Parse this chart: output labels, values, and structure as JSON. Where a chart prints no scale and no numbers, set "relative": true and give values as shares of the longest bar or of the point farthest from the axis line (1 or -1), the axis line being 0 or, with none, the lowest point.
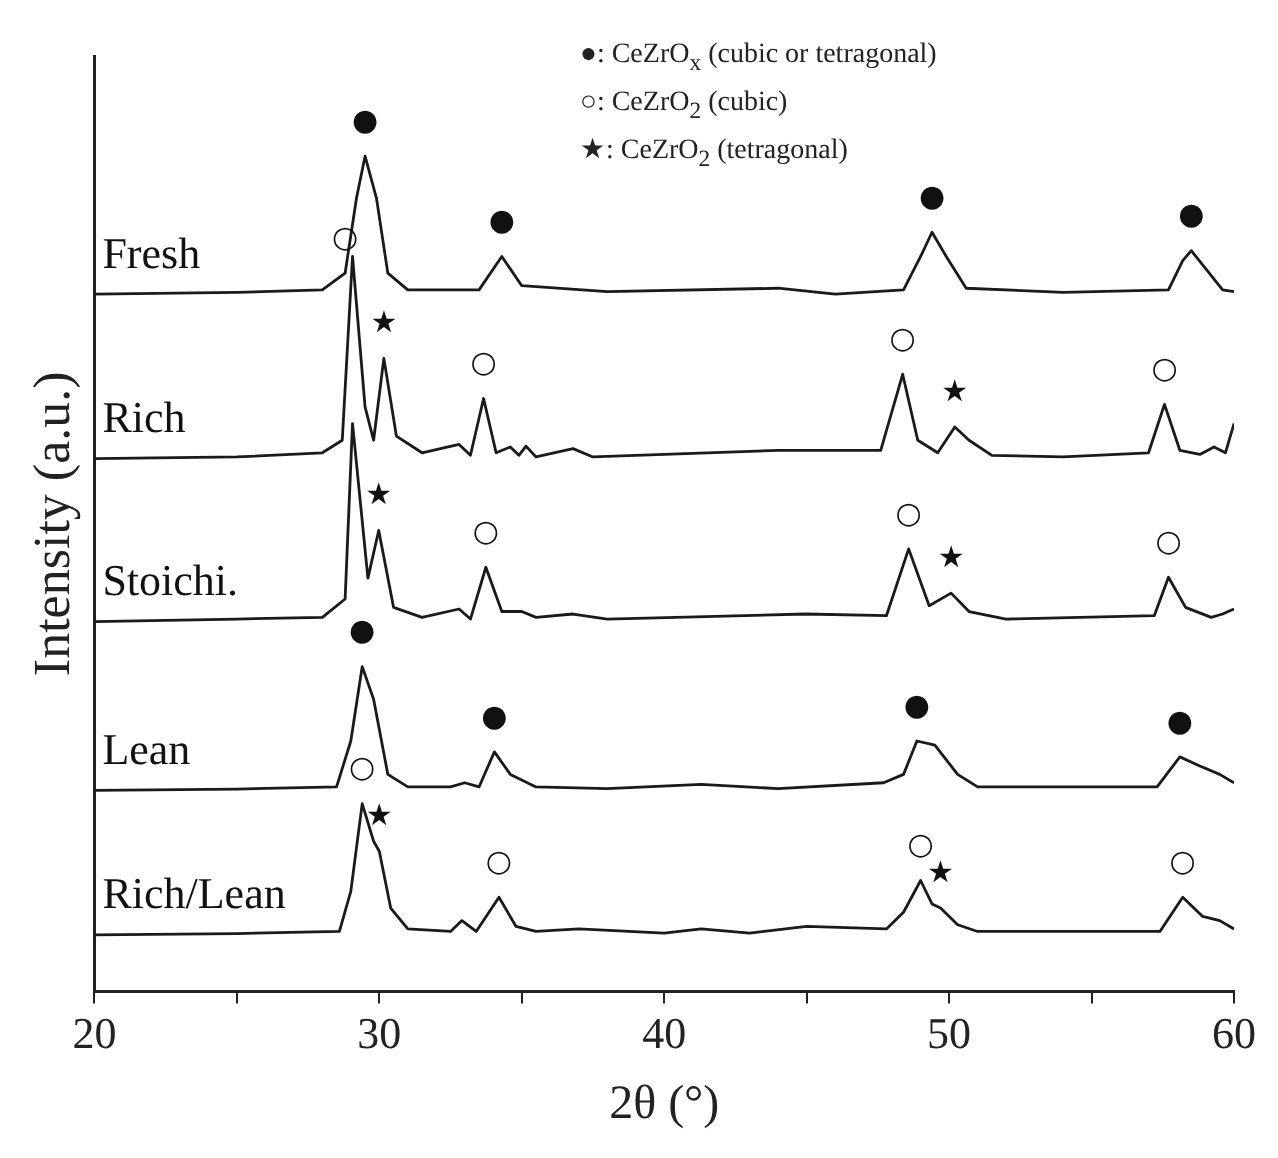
{
  "chart_data": {
    "type": "line",
    "relative": true,
    "xlabel": "2θ (°)",
    "ylabel": "Intensity (a.u.)",
    "xlim": [
      20,
      60
    ],
    "xticks": [
      20,
      {
        "value": 25,
        "label": null
      },
      30,
      {
        "value": 35,
        "label": null
      },
      40,
      {
        "value": 45,
        "label": null
      },
      50,
      {
        "value": 55,
        "label": null
      },
      60
    ],
    "tick_labels": "x",
    "legend": false,
    "grid": false,
    "marker": "none",
    "series": [
      {
        "name": "Fresh",
        "color": "#1a1a1a",
        "x": [
          20,
          25,
          28,
          28.8,
          29.2,
          29.5,
          29.9,
          30.3,
          31,
          33.5,
          34.3,
          35,
          38,
          44,
          46,
          48.4,
          49,
          49.4,
          49.9,
          50.6,
          54,
          57.7,
          58.2,
          58.5,
          58.9,
          59.6,
          60
        ],
        "values": [
          0.835,
          0.837,
          0.84,
          0.86,
          0.95,
          1.0,
          0.95,
          0.86,
          0.84,
          0.84,
          0.88,
          0.845,
          0.838,
          0.842,
          0.835,
          0.84,
          0.88,
          0.909,
          0.88,
          0.842,
          0.837,
          0.84,
          0.875,
          0.887,
          0.87,
          0.84,
          0.838
        ]
      },
      {
        "name": "Rich",
        "color": "#1a1a1a",
        "x": [
          20,
          25,
          28,
          28.7,
          29.06,
          29.5,
          29.8,
          30.16,
          30.6,
          31.5,
          32.8,
          33.2,
          33.66,
          34.1,
          34.6,
          34.9,
          35.15,
          35.5,
          36.8,
          37.5,
          44,
          47.6,
          48.37,
          48.9,
          49.6,
          50.2,
          50.7,
          51.5,
          54,
          57,
          57.56,
          58.1,
          58.8,
          59.3,
          59.7,
          60
        ],
        "values": [
          0.638,
          0.64,
          0.645,
          0.66,
          0.88,
          0.7,
          0.66,
          0.758,
          0.665,
          0.645,
          0.655,
          0.642,
          0.71,
          0.645,
          0.652,
          0.642,
          0.653,
          0.64,
          0.65,
          0.64,
          0.648,
          0.648,
          0.739,
          0.66,
          0.645,
          0.676,
          0.66,
          0.642,
          0.64,
          0.645,
          0.703,
          0.648,
          0.643,
          0.652,
          0.645,
          0.68
        ]
      },
      {
        "name": "Stoichi.",
        "color": "#1a1a1a",
        "x": [
          20,
          25,
          28,
          28.8,
          29.06,
          29.6,
          29.98,
          30.5,
          31.5,
          32.8,
          33.2,
          33.74,
          34.3,
          35,
          35.5,
          36.8,
          38,
          44.96,
          47.8,
          48.58,
          49.3,
          50.07,
          50.7,
          52,
          57.2,
          57.7,
          58.3,
          59.2,
          59.6,
          60
        ],
        "values": [
          0.443,
          0.446,
          0.448,
          0.47,
          0.68,
          0.495,
          0.552,
          0.46,
          0.448,
          0.458,
          0.446,
          0.508,
          0.455,
          0.455,
          0.448,
          0.452,
          0.446,
          0.452,
          0.45,
          0.53,
          0.462,
          0.477,
          0.455,
          0.446,
          0.45,
          0.496,
          0.46,
          0.448,
          0.452,
          0.458
        ]
      },
      {
        "name": "Lean",
        "color": "#1a1a1a",
        "x": [
          20,
          25,
          28.5,
          29,
          29.4,
          29.8,
          30.3,
          31,
          32.5,
          33,
          33.5,
          34.04,
          34.6,
          35.5,
          38,
          41.3,
          44,
          47.7,
          48.4,
          48.87,
          49.5,
          50.3,
          51,
          57.3,
          58.1,
          58.8,
          59.5,
          60
        ],
        "values": [
          0.241,
          0.2425,
          0.245,
          0.3,
          0.389,
          0.35,
          0.26,
          0.245,
          0.245,
          0.25,
          0.245,
          0.287,
          0.26,
          0.245,
          0.243,
          0.248,
          0.243,
          0.25,
          0.26,
          0.3,
          0.295,
          0.26,
          0.245,
          0.245,
          0.281,
          0.27,
          0.26,
          0.25
        ]
      },
      {
        "name": "Rich/Lean",
        "color": "#1a1a1a",
        "x": [
          20,
          25,
          28.6,
          29,
          29.4,
          29.8,
          30,
          30.4,
          31,
          32.5,
          32.9,
          33.4,
          34.2,
          34.8,
          35.5,
          37,
          40,
          41.3,
          43,
          45,
          47.8,
          48.4,
          49,
          49.4,
          49.7,
          50.3,
          51,
          57.4,
          58.2,
          58.9,
          59.5,
          60
        ],
        "values": [
          0.068,
          0.0695,
          0.072,
          0.12,
          0.225,
          0.18,
          0.168,
          0.1,
          0.075,
          0.072,
          0.085,
          0.072,
          0.113,
          0.078,
          0.072,
          0.075,
          0.07,
          0.075,
          0.07,
          0.078,
          0.075,
          0.095,
          0.133,
          0.105,
          0.1,
          0.08,
          0.072,
          0.072,
          0.113,
          0.09,
          0.085,
          0.075
        ]
      }
    ],
    "annotations": [
      "●: CeZrO$_{x}$ (cubic or tetragonal)",
      "○: CeZrO$_{2}$ (cubic)",
      "★: CeZrO$_{2}$ (tetragonal)",
      {
        "text": "●",
        "x": 29.5,
        "y": 1.0
      },
      {
        "text": "○",
        "x": 28.8,
        "y": 0.86
      },
      {
        "text": "●",
        "x": 34.3,
        "y": 0.88
      },
      {
        "text": "●",
        "x": 49.4,
        "y": 0.909
      },
      {
        "text": "●",
        "x": 58.5,
        "y": 0.887
      },
      {
        "text": "★",
        "x": 30.16,
        "y": 0.758
      },
      {
        "text": "○",
        "x": 33.66,
        "y": 0.71
      },
      {
        "text": "○",
        "x": 48.37,
        "y": 0.739
      },
      {
        "text": "★",
        "x": 50.2,
        "y": 0.676
      },
      {
        "text": "○",
        "x": 57.56,
        "y": 0.703
      },
      {
        "text": "★",
        "x": 29.98,
        "y": 0.552
      },
      {
        "text": "○",
        "x": 33.74,
        "y": 0.508
      },
      {
        "text": "○",
        "x": 48.58,
        "y": 0.53
      },
      {
        "text": "★",
        "x": 50.07,
        "y": 0.477
      },
      {
        "text": "○",
        "x": 57.7,
        "y": 0.496
      },
      {
        "text": "●",
        "x": 29.4,
        "y": 0.389
      },
      {
        "text": "●",
        "x": 34.04,
        "y": 0.287
      },
      {
        "text": "●",
        "x": 48.87,
        "y": 0.3
      },
      {
        "text": "●",
        "x": 58.1,
        "y": 0.281
      },
      {
        "text": "○",
        "x": 29.4,
        "y": 0.225
      },
      {
        "text": "★",
        "x": 30,
        "y": 0.168
      },
      {
        "text": "○",
        "x": 34.2,
        "y": 0.113
      },
      {
        "text": "○",
        "x": 49.0,
        "y": 0.133
      },
      {
        "text": "★",
        "x": 49.7,
        "y": 0.1
      },
      {
        "text": "○",
        "x": 58.2,
        "y": 0.113
      }
    ]
  }
}
